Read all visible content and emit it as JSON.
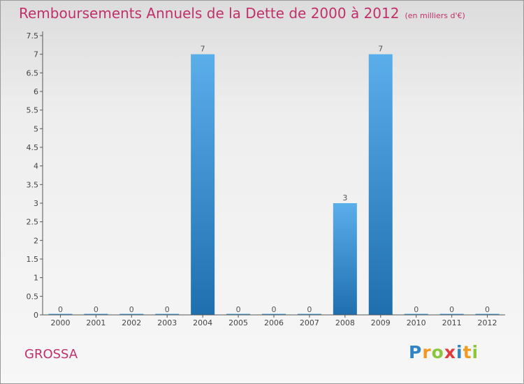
{
  "header": {
    "title": "Remboursements Annuels de la Dette de 2000 à 2012",
    "unit": "(en milliers d'€)"
  },
  "footer": {
    "commune": "GROSSA",
    "logo_letters": [
      {
        "ch": "P",
        "color": "#2f84c6"
      },
      {
        "ch": "r",
        "color": "#f29a1f"
      },
      {
        "ch": "o",
        "color": "#8cc63f"
      },
      {
        "ch": "x",
        "color": "#e23a3a"
      },
      {
        "ch": "i",
        "color": "#2f84c6"
      },
      {
        "ch": "t",
        "color": "#f29a1f"
      },
      {
        "ch": "i",
        "color": "#8cc63f"
      }
    ]
  },
  "chart_data": {
    "type": "bar",
    "title": "Remboursements Annuels de la Dette de 2000 à 2012",
    "subtitle": "(en milliers d'€)",
    "categories": [
      "2000",
      "2001",
      "2002",
      "2003",
      "2004",
      "2005",
      "2006",
      "2007",
      "2008",
      "2009",
      "2010",
      "2011",
      "2012"
    ],
    "values": [
      0,
      0,
      0,
      0,
      7,
      0,
      0,
      0,
      3,
      7,
      0,
      0,
      0
    ],
    "data_labels": [
      "0",
      "0",
      "0",
      "0",
      "7",
      "0",
      "0",
      "0",
      "3",
      "7",
      "0",
      "0",
      "0"
    ],
    "ylim": [
      0,
      7.5
    ],
    "yticks": [
      {
        "v": 0,
        "label": "0"
      },
      {
        "v": 0.5,
        "label": "0.5"
      },
      {
        "v": 1,
        "label": "1"
      },
      {
        "v": 1.5,
        "label": "1.5"
      },
      {
        "v": 2,
        "label": "2"
      },
      {
        "v": 2.5,
        "label": "2.5"
      },
      {
        "v": 3,
        "label": "3"
      },
      {
        "v": 3.5,
        "label": "3.5"
      },
      {
        "v": 4,
        "label": "4"
      },
      {
        "v": 4.5,
        "label": "4.5"
      },
      {
        "v": 5,
        "label": "5"
      },
      {
        "v": 5.5,
        "label": "5.5"
      },
      {
        "v": 6,
        "label": "6"
      },
      {
        "v": 6.5,
        "label": "6.5"
      },
      {
        "v": 7,
        "label": "7"
      },
      {
        "v": 7.5,
        "label": "7.5"
      }
    ],
    "grid": false,
    "colors": {
      "bar_top": "#5aaeea",
      "bar_bottom": "#1f6fae",
      "axis": "#555555"
    }
  }
}
